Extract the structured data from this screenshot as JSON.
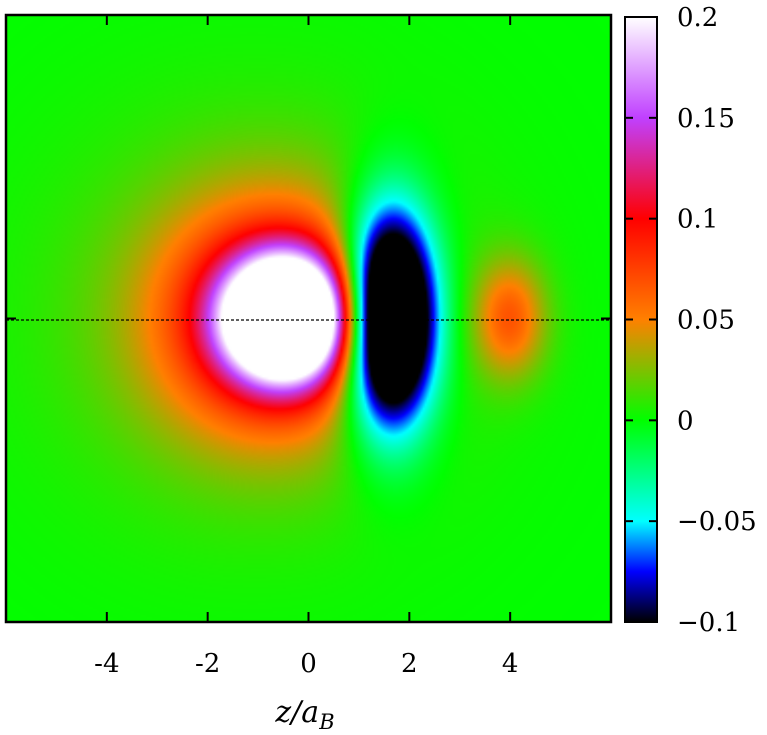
{
  "chart_data": {
    "type": "heatmap",
    "title": "",
    "xlabel": "z/a_B",
    "xlabel_main": "z/a",
    "xlabel_sub": "B",
    "ylabel": "",
    "xlim": [
      -6,
      6
    ],
    "ylim": [
      -6,
      6
    ],
    "x_ticks": [
      -4,
      -2,
      0,
      2,
      4
    ],
    "x_tick_labels": [
      "-4",
      "-2",
      "0",
      "2",
      "4"
    ],
    "grid": false,
    "colorbar": {
      "range": [
        -0.1,
        0.2
      ],
      "ticks": [
        -0.1,
        -0.05,
        0,
        0.05,
        0.1,
        0.15,
        0.2
      ],
      "tick_labels": [
        "−0.1",
        "−0.05",
        "0",
        "0.05",
        "0.1",
        "0.15",
        "0.2"
      ],
      "colors": [
        [
          -0.1,
          "#000000"
        ],
        [
          -0.075,
          "#0000ff"
        ],
        [
          -0.05,
          "#00ffff"
        ],
        [
          0,
          "#00ff00"
        ],
        [
          0.05,
          "#ff8000"
        ],
        [
          0.1,
          "#ff0000"
        ],
        [
          0.15,
          "#c040ff"
        ],
        [
          0.2,
          "#ffffff"
        ]
      ]
    },
    "reference_line": {
      "y": 0,
      "style": "dashed"
    },
    "features": [
      {
        "name": "positive core",
        "x": -0.4,
        "y": 0,
        "value": 0.2
      },
      {
        "name": "negative lobe",
        "x": 1.6,
        "y": 0,
        "value": -0.1
      },
      {
        "name": "positive outer lobe",
        "x": 4.0,
        "y": 0,
        "value": 0.05
      }
    ]
  }
}
